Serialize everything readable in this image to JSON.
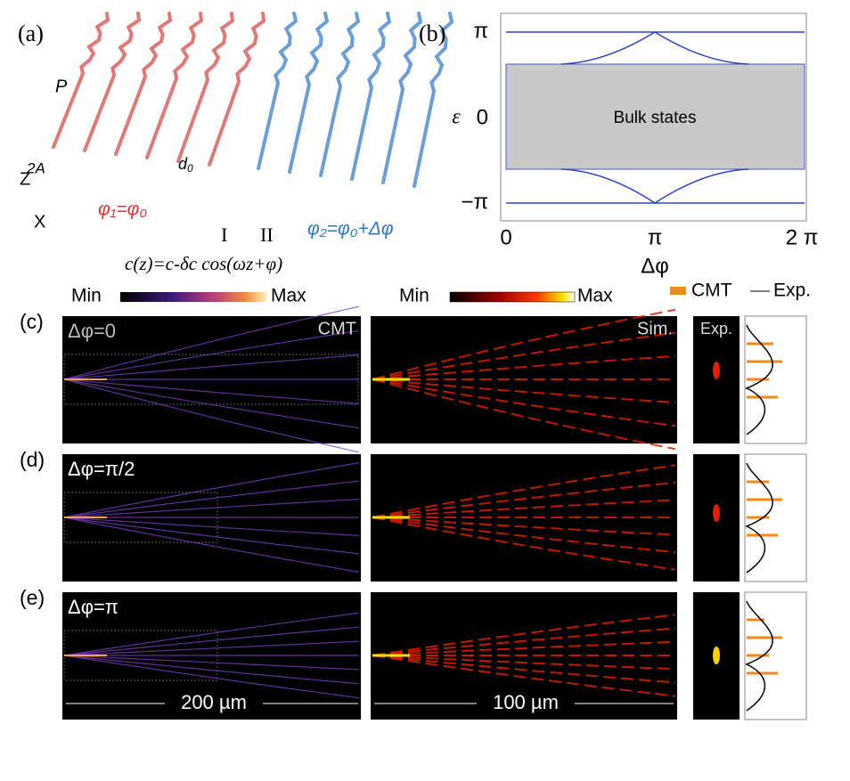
{
  "panel_a": {
    "label": "(a)",
    "P": "P",
    "A": "2A",
    "d": "d",
    "d_sub": "0",
    "z": "Z",
    "x": "X",
    "phi1": "φ₁=φ₀",
    "I": "I",
    "II": "II",
    "phi2": "φ₂=φ₀+Δφ",
    "equation": "c(z)=c-δc cos(ωz+φ)"
  },
  "panel_b": {
    "label": "(b)",
    "ylabel": "ε",
    "xlabel": "Δφ",
    "yticks": [
      "π",
      "0",
      "−π"
    ],
    "xticks": [
      "0",
      "π",
      "2 π"
    ],
    "bulk": "Bulk states"
  },
  "colorbars": {
    "min1": "Min",
    "max1": "Max",
    "min2": "Min",
    "max2": "Max"
  },
  "legend": {
    "cmt": "CMT",
    "exp": "Exp."
  },
  "rows": [
    {
      "label": "(c)",
      "phase": "Δφ=0",
      "cmt": "CMT",
      "sim": "Sim.",
      "exp": "Exp."
    },
    {
      "label": "(d)",
      "phase": "Δφ=π/2"
    },
    {
      "label": "(e)",
      "phase": "Δφ=π"
    }
  ],
  "scales": {
    "cmt": "200 µm",
    "sim": "100 µm"
  }
}
